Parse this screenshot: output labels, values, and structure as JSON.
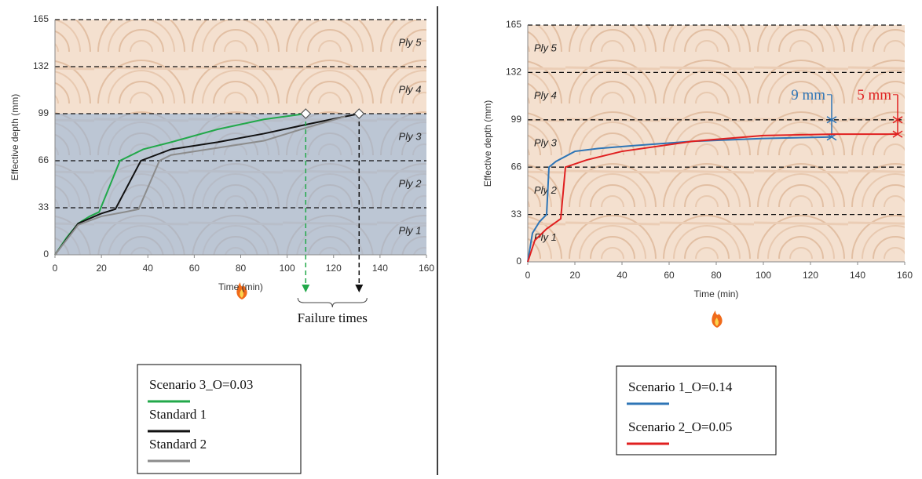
{
  "chart_data": [
    {
      "type": "line",
      "x_label": "Time (min)",
      "y_label": "Effective depth (mm)",
      "xlim": [
        0,
        160
      ],
      "xticks": [
        0,
        20,
        40,
        60,
        80,
        100,
        120,
        140,
        160
      ],
      "ylim": [
        0,
        165
      ],
      "yticks": [
        0,
        33,
        66,
        99,
        132,
        165
      ],
      "grid": true,
      "ply_labels": [
        "Ply 1",
        "Ply 2",
        "Ply 3",
        "Ply 4",
        "Ply 5"
      ],
      "series": [
        {
          "name": "Scenario 3_O=0.03",
          "color": "#22a84a",
          "x": [
            0,
            5,
            10,
            15,
            19,
            28,
            38,
            50,
            70,
            90,
            108
          ],
          "values": [
            0,
            12,
            22,
            27,
            30,
            66,
            74,
            79,
            88,
            95,
            99
          ]
        },
        {
          "name": "Standard 1",
          "color": "#111111",
          "x": [
            0,
            10,
            20,
            26,
            37,
            50,
            70,
            90,
            110,
            131
          ],
          "values": [
            0,
            22,
            29,
            32,
            66,
            74,
            79,
            85,
            92,
            99
          ]
        },
        {
          "name": "Standard 2",
          "color": "#8c8c8c",
          "x": [
            0,
            10,
            20,
            30,
            36,
            45,
            50,
            70,
            90,
            110,
            125
          ],
          "values": [
            0,
            21,
            27,
            30,
            32,
            66,
            70,
            75,
            80,
            90,
            97
          ]
        }
      ],
      "failure_times": [
        108,
        131
      ],
      "failure_colors": [
        "#22a84a",
        "#111111"
      ],
      "failure_label": "Failure times"
    },
    {
      "type": "line",
      "x_label": "Time (min)",
      "y_label": "Effective depth (mm)",
      "xlim": [
        0,
        160
      ],
      "xticks": [
        0,
        20,
        40,
        60,
        80,
        100,
        120,
        140,
        160
      ],
      "ylim": [
        0,
        165
      ],
      "yticks": [
        0,
        33,
        66,
        99,
        132,
        165
      ],
      "grid": true,
      "ply_labels": [
        "Ply 1",
        "Ply 2",
        "Ply 3",
        "Ply 4",
        "Ply 5"
      ],
      "series": [
        {
          "name": "Scenario 1_O=0.14",
          "color": "#2e75b6",
          "x": [
            0,
            2,
            5,
            8,
            9,
            12,
            20,
            30,
            45,
            70,
            100,
            129
          ],
          "values": [
            0,
            20,
            28,
            33,
            66,
            70,
            77,
            79,
            81,
            84,
            86,
            87
          ],
          "annotation": "9 mm"
        },
        {
          "name": "Scenario 2_O=0.05",
          "color": "#e02020",
          "x": [
            0,
            3,
            8,
            14,
            16,
            25,
            40,
            70,
            100,
            130,
            157
          ],
          "values": [
            0,
            15,
            23,
            30,
            66,
            71,
            77,
            84,
            88,
            89,
            89
          ],
          "annotation": "5 mm"
        }
      ]
    }
  ]
}
